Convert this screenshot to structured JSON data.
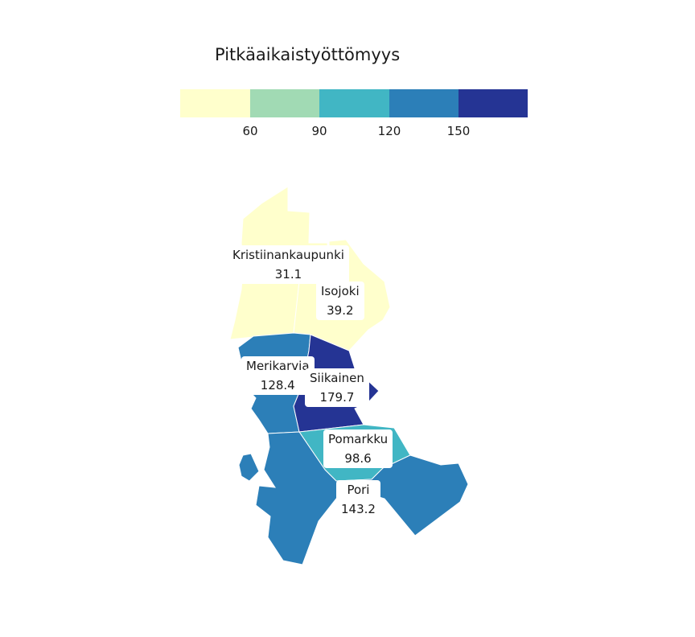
{
  "legend": {
    "title": "Pitkäaikaistyöttömyys",
    "ticks": [
      "60",
      "90",
      "120",
      "150"
    ],
    "colors": [
      "#ffffcc",
      "#a1dab4",
      "#41b6c4",
      "#2c7fb8",
      "#253494"
    ]
  },
  "municipalities": [
    {
      "name": "Kristiinankaupunki",
      "value": "31.1",
      "color": "#ffffcc"
    },
    {
      "name": "Isojoki",
      "value": "39.2",
      "color": "#ffffcc"
    },
    {
      "name": "Merikarvia",
      "value": "128.4",
      "color": "#2c7fb8"
    },
    {
      "name": "Siikainen",
      "value": "179.7",
      "color": "#253494"
    },
    {
      "name": "Pomarkku",
      "value": "98.6",
      "color": "#41b6c4"
    },
    {
      "name": "Pori",
      "value": "143.2",
      "color": "#2c7fb8"
    }
  ]
}
